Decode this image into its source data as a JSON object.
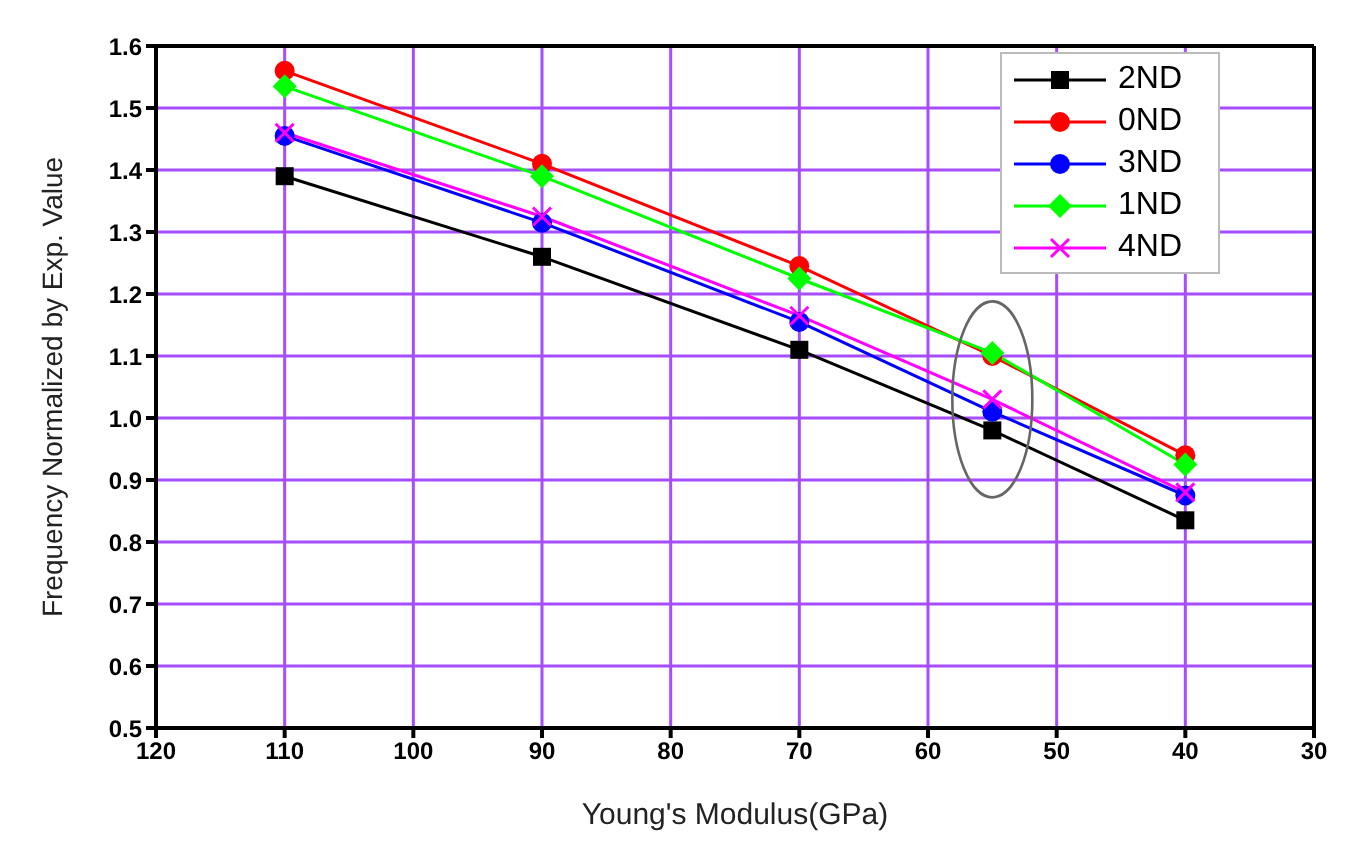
{
  "chart_data": {
    "type": "line",
    "xlabel": "Young's Modulus(GPa)",
    "ylabel": "Frequency Normalized by Exp. Value",
    "x": [
      110,
      90,
      70,
      55,
      40
    ],
    "series": [
      {
        "name": "2ND",
        "color": "#000000",
        "marker": "square",
        "values": [
          1.39,
          1.26,
          1.11,
          0.98,
          0.835
        ]
      },
      {
        "name": "0ND",
        "color": "#ff0000",
        "marker": "circle",
        "values": [
          1.56,
          1.41,
          1.245,
          1.1,
          0.94
        ]
      },
      {
        "name": "3ND",
        "color": "#0000ff",
        "marker": "circle",
        "values": [
          1.455,
          1.315,
          1.155,
          1.01,
          0.875
        ]
      },
      {
        "name": "1ND",
        "color": "#00ff00",
        "marker": "diamond",
        "values": [
          1.535,
          1.39,
          1.225,
          1.105,
          0.925
        ]
      },
      {
        "name": "4ND",
        "color": "#ff00ff",
        "marker": "cross",
        "values": [
          1.46,
          1.325,
          1.165,
          1.03,
          0.88
        ]
      }
    ],
    "xlim": [
      120,
      30
    ],
    "xticks": [
      120,
      110,
      100,
      90,
      80,
      70,
      60,
      50,
      40,
      30
    ],
    "ylim": [
      0.5,
      1.6
    ],
    "yticks": [
      0.5,
      0.6,
      0.7,
      0.8,
      0.9,
      {
        "value": 1.0,
        "label": "1.0"
      },
      1.1,
      1.2,
      1.3,
      1.4,
      1.5,
      1.6
    ],
    "grid": true,
    "legend": "top right",
    "line_style": "solid"
  }
}
